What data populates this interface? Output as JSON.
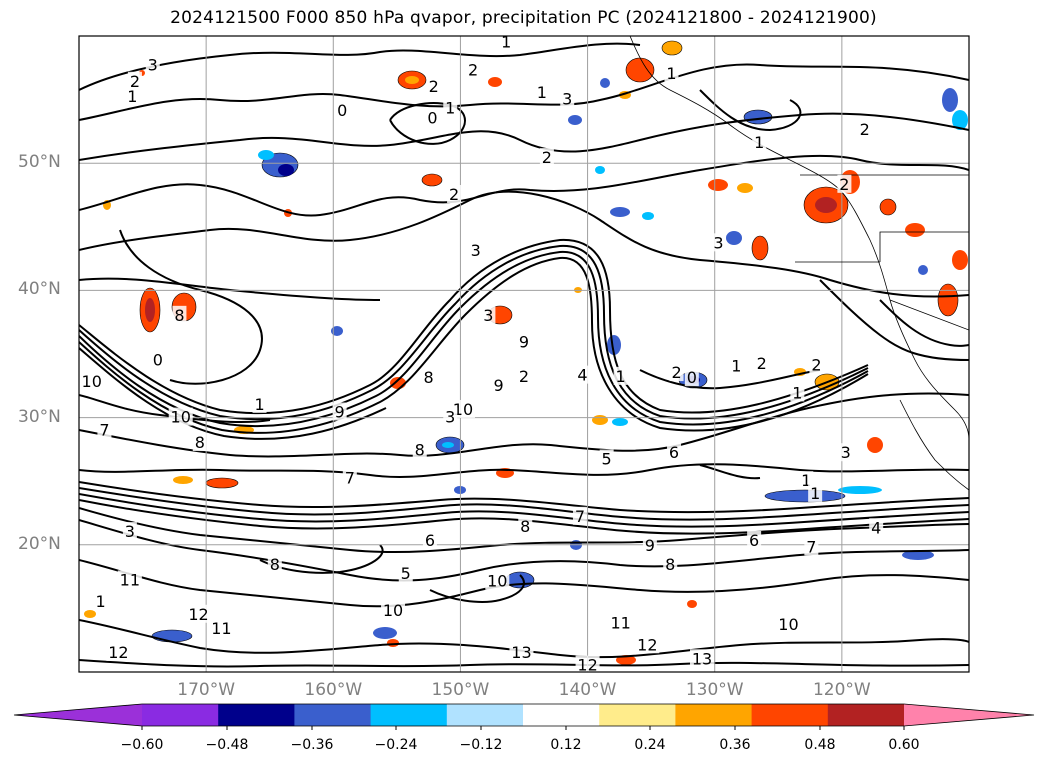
{
  "title": "2024121500 F000 850 hPa qvapor, precipitation PC (2024121800 - 2024121900)",
  "map": {
    "projection": "equirectangular",
    "lon_range": [
      -180,
      -110
    ],
    "lat_range": [
      10,
      60
    ],
    "lat_ticks": [
      {
        "value": 50,
        "label": "50°N"
      },
      {
        "value": 40,
        "label": "40°N"
      },
      {
        "value": 30,
        "label": "30°N"
      },
      {
        "value": 20,
        "label": "20°N"
      }
    ],
    "lon_ticks": [
      {
        "value": -170,
        "label": "170°W"
      },
      {
        "value": -160,
        "label": "160°W"
      },
      {
        "value": -150,
        "label": "150°W"
      },
      {
        "value": -140,
        "label": "140°W"
      },
      {
        "value": -130,
        "label": "130°W"
      },
      {
        "value": -120,
        "label": "120°W"
      }
    ],
    "grid": true,
    "contour_labels": [
      {
        "text": "3",
        "lon": -174.2,
        "lat": 57.7
      },
      {
        "text": "2",
        "lon": -175.6,
        "lat": 56.4
      },
      {
        "text": "1",
        "lon": -175.8,
        "lat": 55.2
      },
      {
        "text": "0",
        "lon": -159.3,
        "lat": 54.1
      },
      {
        "text": "1",
        "lon": -150.8,
        "lat": 54.3
      },
      {
        "text": "0",
        "lon": -152.2,
        "lat": 53.5
      },
      {
        "text": "2",
        "lon": -150.5,
        "lat": 47.5
      },
      {
        "text": "3",
        "lon": -148.8,
        "lat": 43.1
      },
      {
        "text": "2",
        "lon": -143.2,
        "lat": 50.4
      },
      {
        "text": "3",
        "lon": -141.6,
        "lat": 55.0
      },
      {
        "text": "1",
        "lon": -143.6,
        "lat": 55.5
      },
      {
        "text": "2",
        "lon": -149.0,
        "lat": 57.3
      },
      {
        "text": "1",
        "lon": -146.4,
        "lat": 59.5
      },
      {
        "text": "2",
        "lon": -152.1,
        "lat": 56.0
      },
      {
        "text": "1",
        "lon": -133.4,
        "lat": 57.0
      },
      {
        "text": "1",
        "lon": -126.5,
        "lat": 51.6
      },
      {
        "text": "2",
        "lon": -118.2,
        "lat": 52.6
      },
      {
        "text": "2",
        "lon": -119.8,
        "lat": 48.3
      },
      {
        "text": "3",
        "lon": -129.7,
        "lat": 43.7
      },
      {
        "text": "3",
        "lon": -147.8,
        "lat": 38.0
      },
      {
        "text": "9",
        "lon": -145.0,
        "lat": 35.9
      },
      {
        "text": "9",
        "lon": -147.0,
        "lat": 32.5
      },
      {
        "text": "10",
        "lon": -149.8,
        "lat": 30.6
      },
      {
        "text": "8",
        "lon": -152.5,
        "lat": 33.1
      },
      {
        "text": "4",
        "lon": -140.4,
        "lat": 33.3
      },
      {
        "text": "5",
        "lon": -138.5,
        "lat": 26.7
      },
      {
        "text": "6",
        "lon": -133.2,
        "lat": 27.2
      },
      {
        "text": "8",
        "lon": -153.2,
        "lat": 27.4
      },
      {
        "text": "9",
        "lon": -159.5,
        "lat": 30.4
      },
      {
        "text": "1",
        "lon": -137.4,
        "lat": 33.2
      },
      {
        "text": "2",
        "lon": -133.0,
        "lat": 33.5
      },
      {
        "text": "0",
        "lon": -131.8,
        "lat": 33.1
      },
      {
        "text": "2",
        "lon": -126.3,
        "lat": 34.2
      },
      {
        "text": "1",
        "lon": -123.5,
        "lat": 31.9
      },
      {
        "text": "2",
        "lon": -122.0,
        "lat": 34.1
      },
      {
        "text": "3",
        "lon": -119.7,
        "lat": 27.2
      },
      {
        "text": "1",
        "lon": -122.8,
        "lat": 25.0
      },
      {
        "text": "1",
        "lon": -122.1,
        "lat": 24.0
      },
      {
        "text": "4",
        "lon": -117.3,
        "lat": 21.3
      },
      {
        "text": "6",
        "lon": -126.9,
        "lat": 20.3
      },
      {
        "text": "7",
        "lon": -122.4,
        "lat": 19.8
      },
      {
        "text": "8",
        "lon": -133.5,
        "lat": 18.4
      },
      {
        "text": "9",
        "lon": -135.1,
        "lat": 19.9
      },
      {
        "text": "10",
        "lon": -124.2,
        "lat": 13.7
      },
      {
        "text": "11",
        "lon": -137.4,
        "lat": 13.8
      },
      {
        "text": "12",
        "lon": -135.3,
        "lat": 12.1
      },
      {
        "text": "13",
        "lon": -131.0,
        "lat": 11.0
      },
      {
        "text": "12",
        "lon": -140.0,
        "lat": 10.5
      },
      {
        "text": "13",
        "lon": -145.2,
        "lat": 11.5
      },
      {
        "text": "10",
        "lon": -147.1,
        "lat": 17.1
      },
      {
        "text": "10",
        "lon": -155.3,
        "lat": 14.8
      },
      {
        "text": "11",
        "lon": -168.8,
        "lat": 13.4
      },
      {
        "text": "12",
        "lon": -170.6,
        "lat": 14.5
      },
      {
        "text": "12",
        "lon": -176.9,
        "lat": 11.5
      },
      {
        "text": "11",
        "lon": -176.0,
        "lat": 17.2
      },
      {
        "text": "1",
        "lon": -178.3,
        "lat": 15.5
      },
      {
        "text": "10",
        "lon": -179.0,
        "lat": 32.8
      },
      {
        "text": "10",
        "lon": -172.0,
        "lat": 30.0
      },
      {
        "text": "1",
        "lon": -165.8,
        "lat": 31.0
      },
      {
        "text": "8",
        "lon": -170.5,
        "lat": 28.0
      },
      {
        "text": "7",
        "lon": -178.0,
        "lat": 29.0
      },
      {
        "text": "8",
        "lon": -172.1,
        "lat": 38.0
      },
      {
        "text": "0",
        "lon": -173.8,
        "lat": 34.5
      },
      {
        "text": "3",
        "lon": -176.0,
        "lat": 21.0
      },
      {
        "text": "8",
        "lon": -164.6,
        "lat": 18.4
      },
      {
        "text": "7",
        "lon": -158.7,
        "lat": 25.2
      },
      {
        "text": "6",
        "lon": -152.4,
        "lat": 20.3
      },
      {
        "text": "5",
        "lon": -154.3,
        "lat": 17.7
      },
      {
        "text": "8",
        "lon": -144.9,
        "lat": 21.4
      },
      {
        "text": "7",
        "lon": -140.6,
        "lat": 22.2
      },
      {
        "text": "3",
        "lon": -150.8,
        "lat": 30.0
      },
      {
        "text": "2",
        "lon": -145.0,
        "lat": 33.2
      },
      {
        "text": "1",
        "lon": -128.3,
        "lat": 34.0
      }
    ]
  },
  "colorbar": {
    "ticks": [
      "−0.60",
      "−0.48",
      "−0.36",
      "−0.24",
      "−0.12",
      "0.12",
      "0.24",
      "0.36",
      "0.48",
      "0.60"
    ],
    "bins": [
      {
        "color": "#9b30d9"
      },
      {
        "color": "#8a2be2"
      },
      {
        "color": "#00008b"
      },
      {
        "color": "#3a5fcd"
      },
      {
        "color": "#00bfff"
      },
      {
        "color": "#b0e2ff"
      },
      {
        "color": "#ffffff"
      },
      {
        "color": "#ffec8b"
      },
      {
        "color": "#ffa500"
      },
      {
        "color": "#ff4500"
      },
      {
        "color": "#b22222"
      },
      {
        "color": "#ff82ab"
      }
    ]
  }
}
